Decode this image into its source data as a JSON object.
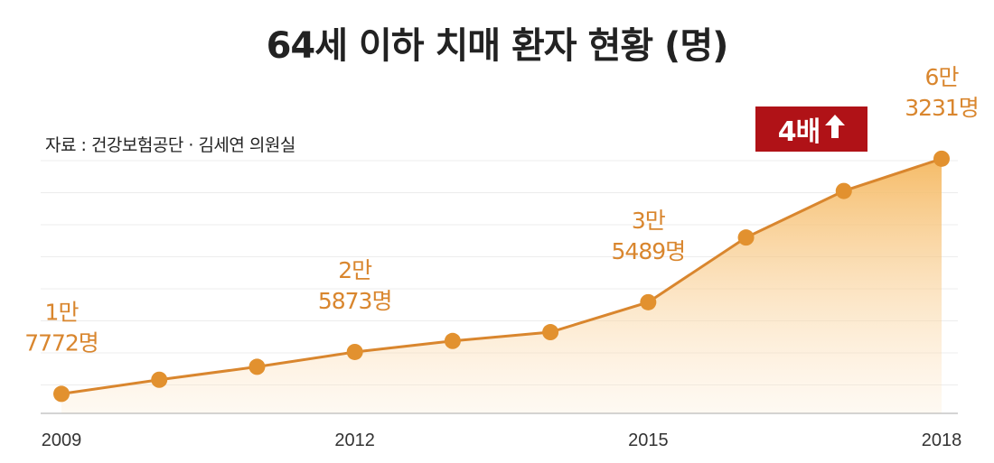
{
  "title": "64세 이하 치매 환자 현황 (명)",
  "source": "자료 : 건강보험공단 · 김세연 의원실",
  "badge": {
    "label": "4배",
    "icon": "arrow-up-icon"
  },
  "colors": {
    "line": "#d9862e",
    "marker": "#e2912f",
    "area_top": "#f5b860",
    "badge": "#b01217",
    "annotation": "#d9862e"
  },
  "chart_data": {
    "type": "area",
    "title": "64세 이하 치매 환자 현황 (명)",
    "x": [
      2009,
      2010,
      2011,
      2012,
      2013,
      2014,
      2015,
      2016,
      2017,
      2018
    ],
    "series": [
      {
        "values": [
          17772,
          20500,
          23000,
          25873,
          28000,
          29700,
          35489,
          48000,
          57000,
          63231
        ]
      }
    ],
    "xticks": [
      "2009",
      "2012",
      "2015",
      "2018"
    ],
    "ylim": [
      14000,
      66000
    ],
    "grid": true,
    "annotations": [
      {
        "x": 2009,
        "line1": "1만",
        "line2": "7772명"
      },
      {
        "x": 2012,
        "line1": "2만",
        "line2": "5873명"
      },
      {
        "x": 2015,
        "line1": "3만",
        "line2": "5489명"
      },
      {
        "x": 2018,
        "line1": "6만",
        "line2": "3231명"
      }
    ]
  }
}
